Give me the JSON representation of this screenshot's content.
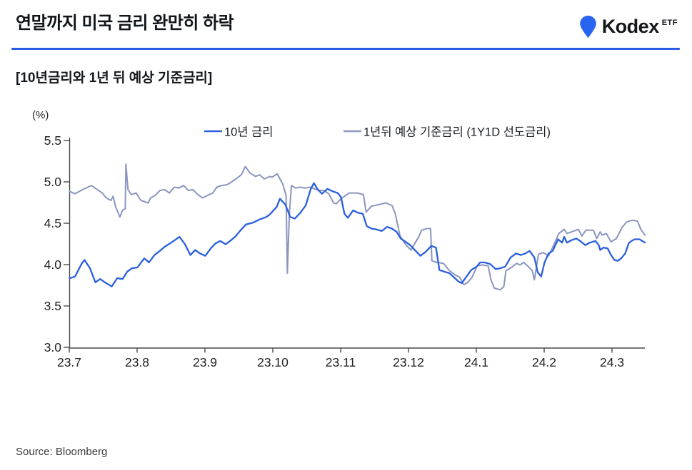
{
  "header": {
    "title": "연말까지 미국 금리 완만히 하락",
    "brand": {
      "name": "Kodex",
      "suffix": "ETF",
      "logo_color": "#2864f0",
      "rule_color": "#2c5ce5"
    }
  },
  "subtitle": "[10년금리와 1년 뒤 예상 기준금리]",
  "source": "Source: Bloomberg",
  "chart_data": {
    "type": "line",
    "title": "",
    "xlabel": "",
    "ylabel": "(%)",
    "unit_label": "(%)",
    "ylim": [
      3.0,
      5.5
    ],
    "yticks": [
      "5.5",
      "5.0",
      "4.5",
      "4.0",
      "3.5",
      "3.0"
    ],
    "xticks": [
      "23.7",
      "23.8",
      "23.9",
      "23.10",
      "23.11",
      "23.12",
      "24.1",
      "24.2",
      "24.3"
    ],
    "x_unit": "fractional months, 0 = 2023-07, 8 = 2024-03",
    "grid": false,
    "legend_position": "top-center",
    "axis_color": "#4a4a4a",
    "series": [
      {
        "name": "10년 금리",
        "color": "#2a5fde",
        "points": [
          [
            0,
            3.84
          ],
          [
            0.08,
            3.86
          ],
          [
            0.18,
            4.02
          ],
          [
            0.22,
            4.06
          ],
          [
            0.3,
            3.96
          ],
          [
            0.38,
            3.79
          ],
          [
            0.45,
            3.83
          ],
          [
            0.52,
            3.79
          ],
          [
            0.62,
            3.74
          ],
          [
            0.7,
            3.84
          ],
          [
            0.78,
            3.83
          ],
          [
            0.85,
            3.92
          ],
          [
            0.92,
            3.96
          ],
          [
            1,
            3.97
          ],
          [
            1.1,
            4.08
          ],
          [
            1.17,
            4.03
          ],
          [
            1.25,
            4.12
          ],
          [
            1.33,
            4.17
          ],
          [
            1.4,
            4.22
          ],
          [
            1.48,
            4.26
          ],
          [
            1.55,
            4.3
          ],
          [
            1.62,
            4.34
          ],
          [
            1.7,
            4.25
          ],
          [
            1.78,
            4.12
          ],
          [
            1.85,
            4.18
          ],
          [
            1.92,
            4.14
          ],
          [
            2,
            4.11
          ],
          [
            2.08,
            4.2
          ],
          [
            2.15,
            4.26
          ],
          [
            2.22,
            4.29
          ],
          [
            2.3,
            4.25
          ],
          [
            2.38,
            4.3
          ],
          [
            2.45,
            4.35
          ],
          [
            2.52,
            4.42
          ],
          [
            2.6,
            4.49
          ],
          [
            2.7,
            4.51
          ],
          [
            2.8,
            4.55
          ],
          [
            2.9,
            4.58
          ],
          [
            2.95,
            4.61
          ],
          [
            3.05,
            4.7
          ],
          [
            3.1,
            4.8
          ],
          [
            3.18,
            4.73
          ],
          [
            3.25,
            4.58
          ],
          [
            3.32,
            4.56
          ],
          [
            3.4,
            4.63
          ],
          [
            3.48,
            4.72
          ],
          [
            3.55,
            4.91
          ],
          [
            3.6,
            4.99
          ],
          [
            3.65,
            4.92
          ],
          [
            3.72,
            4.86
          ],
          [
            3.8,
            4.92
          ],
          [
            3.88,
            4.89
          ],
          [
            3.95,
            4.87
          ],
          [
            4,
            4.82
          ],
          [
            4.05,
            4.62
          ],
          [
            4.1,
            4.57
          ],
          [
            4.18,
            4.66
          ],
          [
            4.25,
            4.63
          ],
          [
            4.32,
            4.62
          ],
          [
            4.38,
            4.47
          ],
          [
            4.45,
            4.44
          ],
          [
            4.52,
            4.43
          ],
          [
            4.6,
            4.41
          ],
          [
            4.68,
            4.46
          ],
          [
            4.75,
            4.44
          ],
          [
            4.82,
            4.4
          ],
          [
            4.88,
            4.32
          ],
          [
            4.95,
            4.28
          ],
          [
            5.02,
            4.24
          ],
          [
            5.1,
            4.17
          ],
          [
            5.17,
            4.11
          ],
          [
            5.25,
            4.16
          ],
          [
            5.33,
            4.23
          ],
          [
            5.4,
            4.21
          ],
          [
            5.45,
            3.94
          ],
          [
            5.52,
            3.92
          ],
          [
            5.6,
            3.9
          ],
          [
            5.68,
            3.84
          ],
          [
            5.73,
            3.8
          ],
          [
            5.78,
            3.78
          ],
          [
            5.85,
            3.86
          ],
          [
            5.92,
            3.94
          ],
          [
            6,
            3.98
          ],
          [
            6.05,
            4.03
          ],
          [
            6.12,
            4.03
          ],
          [
            6.2,
            4.01
          ],
          [
            6.28,
            3.95
          ],
          [
            6.35,
            3.96
          ],
          [
            6.42,
            3.98
          ],
          [
            6.5,
            4.09
          ],
          [
            6.58,
            4.14
          ],
          [
            6.65,
            4.12
          ],
          [
            6.72,
            4.14
          ],
          [
            6.78,
            4.17
          ],
          [
            6.85,
            4.09
          ],
          [
            6.9,
            3.91
          ],
          [
            6.95,
            3.86
          ],
          [
            7,
            4.03
          ],
          [
            7.06,
            4.14
          ],
          [
            7.12,
            4.17
          ],
          [
            7.2,
            4.31
          ],
          [
            7.26,
            4.27
          ],
          [
            7.29,
            4.34
          ],
          [
            7.33,
            4.27
          ],
          [
            7.4,
            4.3
          ],
          [
            7.47,
            4.32
          ],
          [
            7.54,
            4.28
          ],
          [
            7.6,
            4.24
          ],
          [
            7.67,
            4.27
          ],
          [
            7.75,
            4.29
          ],
          [
            7.8,
            4.24
          ],
          [
            7.82,
            4.18
          ],
          [
            7.87,
            4.21
          ],
          [
            7.93,
            4.2
          ],
          [
            7.98,
            4.12
          ],
          [
            8.03,
            4.06
          ],
          [
            8.08,
            4.05
          ],
          [
            8.13,
            4.08
          ],
          [
            8.19,
            4.14
          ],
          [
            8.24,
            4.26
          ],
          [
            8.28,
            4.29
          ],
          [
            8.33,
            4.31
          ],
          [
            8.4,
            4.31
          ],
          [
            8.44,
            4.29
          ],
          [
            8.48,
            4.27
          ]
        ]
      },
      {
        "name": "1년뒤 예상 기준금리 (1Y1D 선도금리)",
        "color": "#8b95c1",
        "points": [
          [
            0,
            4.89
          ],
          [
            0.08,
            4.86
          ],
          [
            0.19,
            4.91
          ],
          [
            0.32,
            4.96
          ],
          [
            0.48,
            4.87
          ],
          [
            0.54,
            4.81
          ],
          [
            0.61,
            4.78
          ],
          [
            0.64,
            4.83
          ],
          [
            0.68,
            4.7
          ],
          [
            0.74,
            4.58
          ],
          [
            0.78,
            4.66
          ],
          [
            0.82,
            4.68
          ],
          [
            0.83,
            5.22
          ],
          [
            0.86,
            4.91
          ],
          [
            0.91,
            4.85
          ],
          [
            0.98,
            4.87
          ],
          [
            1.05,
            4.78
          ],
          [
            1.16,
            4.75
          ],
          [
            1.19,
            4.81
          ],
          [
            1.26,
            4.84
          ],
          [
            1.33,
            4.9
          ],
          [
            1.4,
            4.91
          ],
          [
            1.47,
            4.87
          ],
          [
            1.54,
            4.94
          ],
          [
            1.61,
            4.93
          ],
          [
            1.68,
            4.96
          ],
          [
            1.75,
            4.9
          ],
          [
            1.82,
            4.91
          ],
          [
            1.89,
            4.85
          ],
          [
            1.96,
            4.81
          ],
          [
            2.03,
            4.84
          ],
          [
            2.11,
            4.87
          ],
          [
            2.17,
            4.94
          ],
          [
            2.24,
            4.96
          ],
          [
            2.32,
            4.97
          ],
          [
            2.38,
            5
          ],
          [
            2.45,
            5.04
          ],
          [
            2.53,
            5.09
          ],
          [
            2.59,
            5.19
          ],
          [
            2.66,
            5.11
          ],
          [
            2.74,
            5.07
          ],
          [
            2.8,
            5.09
          ],
          [
            2.87,
            5.04
          ],
          [
            2.95,
            5.07
          ],
          [
            2.98,
            5.06
          ],
          [
            3.06,
            5.1
          ],
          [
            3.14,
            4.98
          ],
          [
            3.19,
            4.84
          ],
          [
            3.21,
            3.9
          ],
          [
            3.24,
            4.64
          ],
          [
            3.27,
            4.96
          ],
          [
            3.33,
            4.93
          ],
          [
            3.4,
            4.94
          ],
          [
            3.47,
            4.93
          ],
          [
            3.54,
            4.94
          ],
          [
            3.61,
            4.92
          ],
          [
            3.68,
            4.9
          ],
          [
            3.75,
            4.9
          ],
          [
            3.82,
            4.86
          ],
          [
            3.89,
            4.75
          ],
          [
            3.93,
            4.74
          ],
          [
            4,
            4.8
          ],
          [
            4.12,
            4.87
          ],
          [
            4.24,
            4.87
          ],
          [
            4.33,
            4.85
          ],
          [
            4.37,
            4.64
          ],
          [
            4.45,
            4.71
          ],
          [
            4.56,
            4.73
          ],
          [
            4.66,
            4.75
          ],
          [
            4.75,
            4.72
          ],
          [
            4.8,
            4.62
          ],
          [
            4.87,
            4.35
          ],
          [
            4.95,
            4.25
          ],
          [
            5.03,
            4.18
          ],
          [
            5.08,
            4.25
          ],
          [
            5.14,
            4.33
          ],
          [
            5.19,
            4.42
          ],
          [
            5.26,
            4.44
          ],
          [
            5.32,
            4.44
          ],
          [
            5.34,
            4.05
          ],
          [
            5.42,
            4.03
          ],
          [
            5.51,
            4.02
          ],
          [
            5.59,
            3.94
          ],
          [
            5.68,
            3.88
          ],
          [
            5.75,
            3.85
          ],
          [
            5.81,
            3.76
          ],
          [
            5.87,
            3.79
          ],
          [
            5.93,
            3.85
          ],
          [
            6.01,
            3.99
          ],
          [
            6.08,
            4
          ],
          [
            6.17,
            3.99
          ],
          [
            6.21,
            3.82
          ],
          [
            6.26,
            3.72
          ],
          [
            6.35,
            3.7
          ],
          [
            6.4,
            3.74
          ],
          [
            6.43,
            3.93
          ],
          [
            6.51,
            3.97
          ],
          [
            6.59,
            4.02
          ],
          [
            6.64,
            4
          ],
          [
            6.69,
            4.03
          ],
          [
            6.75,
            3.99
          ],
          [
            6.82,
            3.93
          ],
          [
            6.85,
            3.82
          ],
          [
            6.91,
            4.13
          ],
          [
            6.98,
            4.15
          ],
          [
            7.06,
            4.11
          ],
          [
            7.14,
            4.25
          ],
          [
            7.21,
            4.38
          ],
          [
            7.29,
            4.43
          ],
          [
            7.33,
            4.38
          ],
          [
            7.4,
            4.4
          ],
          [
            7.5,
            4.43
          ],
          [
            7.55,
            4.35
          ],
          [
            7.61,
            4.42
          ],
          [
            7.72,
            4.42
          ],
          [
            7.77,
            4.32
          ],
          [
            7.82,
            4.4
          ],
          [
            7.85,
            4.36
          ],
          [
            7.91,
            4.38
          ],
          [
            7.98,
            4.28
          ],
          [
            8.06,
            4.32
          ],
          [
            8.14,
            4.45
          ],
          [
            8.21,
            4.52
          ],
          [
            8.29,
            4.54
          ],
          [
            8.37,
            4.53
          ],
          [
            8.42,
            4.43
          ],
          [
            8.48,
            4.36
          ]
        ]
      }
    ]
  }
}
